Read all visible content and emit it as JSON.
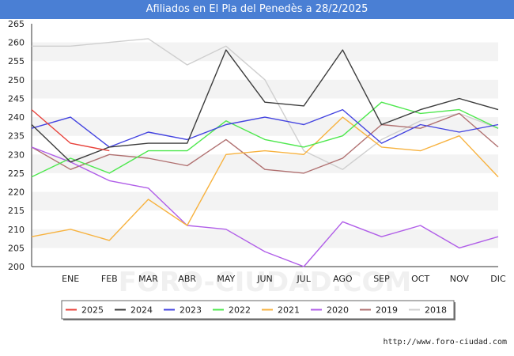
{
  "header": {
    "title": "Afiliados en El Pla del Penedès a 28/2/2025"
  },
  "footer": {
    "url": "http://www.foro-ciudad.com"
  },
  "watermark": "FORO-CIUDAD.COM",
  "chart_data": {
    "type": "line",
    "title": "Afiliados en El Pla del Penedès a 28/2/2025",
    "xlabel": "",
    "ylabel": "",
    "categories": [
      "",
      "ENE",
      "FEB",
      "MAR",
      "ABR",
      "MAY",
      "JUN",
      "JUL",
      "AGO",
      "SEP",
      "OCT",
      "NOV",
      "DIC"
    ],
    "ylim": [
      200,
      265
    ],
    "yticks": [
      200,
      205,
      210,
      215,
      220,
      225,
      230,
      235,
      240,
      245,
      250,
      255,
      260,
      265
    ],
    "grid": "horizontal bands",
    "legend_position": "bottom",
    "series": [
      {
        "name": "2025",
        "color": "#e8413a",
        "values": [
          242,
          233,
          231,
          null,
          null,
          null,
          null,
          null,
          null,
          null,
          null,
          null,
          null
        ]
      },
      {
        "name": "2024",
        "color": "#3c3c3c",
        "values": [
          238,
          228,
          232,
          233,
          233,
          258,
          244,
          243,
          258,
          238,
          242,
          245,
          242
        ]
      },
      {
        "name": "2023",
        "color": "#4343e0",
        "values": [
          237,
          240,
          232,
          236,
          234,
          238,
          240,
          238,
          242,
          233,
          238,
          236,
          238
        ]
      },
      {
        "name": "2022",
        "color": "#4ee84e",
        "values": [
          224,
          229,
          225,
          231,
          231,
          239,
          234,
          232,
          235,
          244,
          241,
          242,
          237
        ]
      },
      {
        "name": "2021",
        "color": "#f7b23f",
        "values": [
          208,
          210,
          207,
          218,
          211,
          230,
          231,
          230,
          240,
          232,
          231,
          235,
          224
        ]
      },
      {
        "name": "2020",
        "color": "#b05ee8",
        "values": [
          232,
          228,
          223,
          221,
          211,
          210,
          204,
          200,
          212,
          208,
          211,
          205,
          208
        ]
      },
      {
        "name": "2019",
        "color": "#b07070",
        "values": [
          232,
          226,
          230,
          229,
          227,
          234,
          226,
          225,
          229,
          238,
          237,
          241,
          232
        ]
      },
      {
        "name": "2018",
        "color": "#cfcfcf",
        "values": [
          259,
          259,
          260,
          261,
          254,
          259,
          250,
          231,
          226,
          234,
          239,
          241,
          237
        ]
      }
    ]
  }
}
